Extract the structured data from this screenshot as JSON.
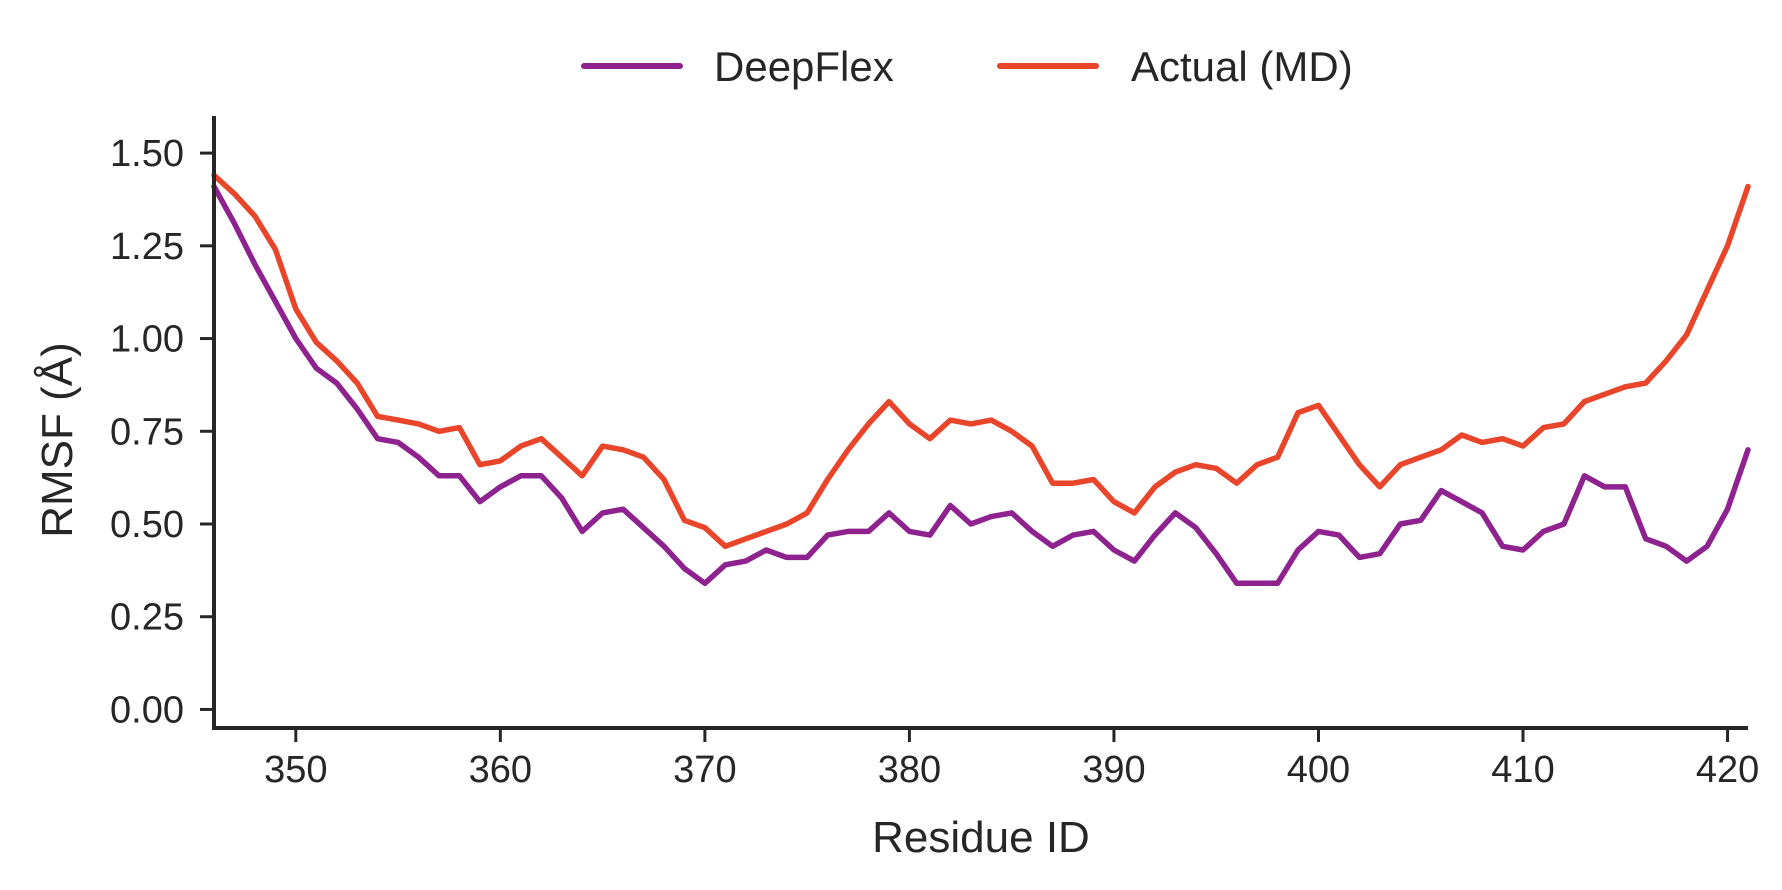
{
  "chart_data": {
    "type": "line",
    "title": "",
    "xlabel": "Residue ID",
    "ylabel": "RMSF (Å)",
    "xlim": [
      346,
      421
    ],
    "ylim": [
      -0.05,
      1.6
    ],
    "xticks": [
      350,
      360,
      370,
      380,
      390,
      400,
      410,
      420
    ],
    "xtick_labels": [
      "350",
      "360",
      "370",
      "380",
      "390",
      "400",
      "410",
      "420"
    ],
    "yticks": [
      0,
      0.25,
      0.5,
      0.75,
      1.0,
      1.25,
      1.5
    ],
    "ytick_labels": [
      "0.00",
      "0.25",
      "0.50",
      "0.75",
      "1.00",
      "1.25",
      "1.50"
    ],
    "grid": false,
    "legend": "top-center",
    "x": [
      346,
      347,
      348,
      349,
      350,
      351,
      352,
      353,
      354,
      355,
      356,
      357,
      358,
      359,
      360,
      361,
      362,
      363,
      364,
      365,
      366,
      367,
      368,
      369,
      370,
      371,
      372,
      373,
      374,
      375,
      376,
      377,
      378,
      379,
      380,
      381,
      382,
      383,
      384,
      385,
      386,
      387,
      388,
      389,
      390,
      391,
      392,
      393,
      394,
      395,
      396,
      397,
      398,
      399,
      400,
      401,
      402,
      403,
      404,
      405,
      406,
      407,
      408,
      409,
      410,
      411,
      412,
      413,
      414,
      415,
      416,
      417,
      418,
      419,
      420,
      421
    ],
    "series": [
      {
        "name": "DeepFlex",
        "color": "#8e2390",
        "values": [
          1.41,
          1.31,
          1.2,
          1.1,
          1.0,
          0.92,
          0.88,
          0.81,
          0.73,
          0.72,
          0.68,
          0.63,
          0.63,
          0.56,
          0.6,
          0.63,
          0.63,
          0.57,
          0.48,
          0.53,
          0.54,
          0.49,
          0.44,
          0.38,
          0.34,
          0.39,
          0.4,
          0.43,
          0.41,
          0.41,
          0.47,
          0.48,
          0.48,
          0.53,
          0.48,
          0.47,
          0.55,
          0.5,
          0.52,
          0.53,
          0.48,
          0.44,
          0.47,
          0.48,
          0.43,
          0.4,
          0.47,
          0.53,
          0.49,
          0.42,
          0.34,
          0.34,
          0.34,
          0.43,
          0.48,
          0.47,
          0.41,
          0.42,
          0.5,
          0.51,
          0.59,
          0.56,
          0.53,
          0.44,
          0.43,
          0.48,
          0.5,
          0.63,
          0.6,
          0.6,
          0.46,
          0.44,
          0.4,
          0.44,
          0.54,
          0.7
        ]
      },
      {
        "name": "Actual (MD)",
        "color": "#e8452a",
        "values": [
          1.44,
          1.39,
          1.33,
          1.24,
          1.08,
          0.99,
          0.94,
          0.88,
          0.79,
          0.78,
          0.77,
          0.75,
          0.76,
          0.66,
          0.67,
          0.71,
          0.73,
          0.68,
          0.63,
          0.71,
          0.7,
          0.68,
          0.62,
          0.51,
          0.49,
          0.44,
          0.46,
          0.48,
          0.5,
          0.53,
          0.62,
          0.7,
          0.77,
          0.83,
          0.77,
          0.73,
          0.78,
          0.77,
          0.78,
          0.75,
          0.71,
          0.61,
          0.61,
          0.62,
          0.56,
          0.53,
          0.6,
          0.64,
          0.66,
          0.65,
          0.61,
          0.66,
          0.68,
          0.8,
          0.82,
          0.74,
          0.66,
          0.6,
          0.66,
          0.68,
          0.7,
          0.74,
          0.72,
          0.73,
          0.71,
          0.76,
          0.77,
          0.83,
          0.85,
          0.87,
          0.88,
          0.94,
          1.01,
          1.13,
          1.25,
          1.41
        ]
      }
    ]
  }
}
